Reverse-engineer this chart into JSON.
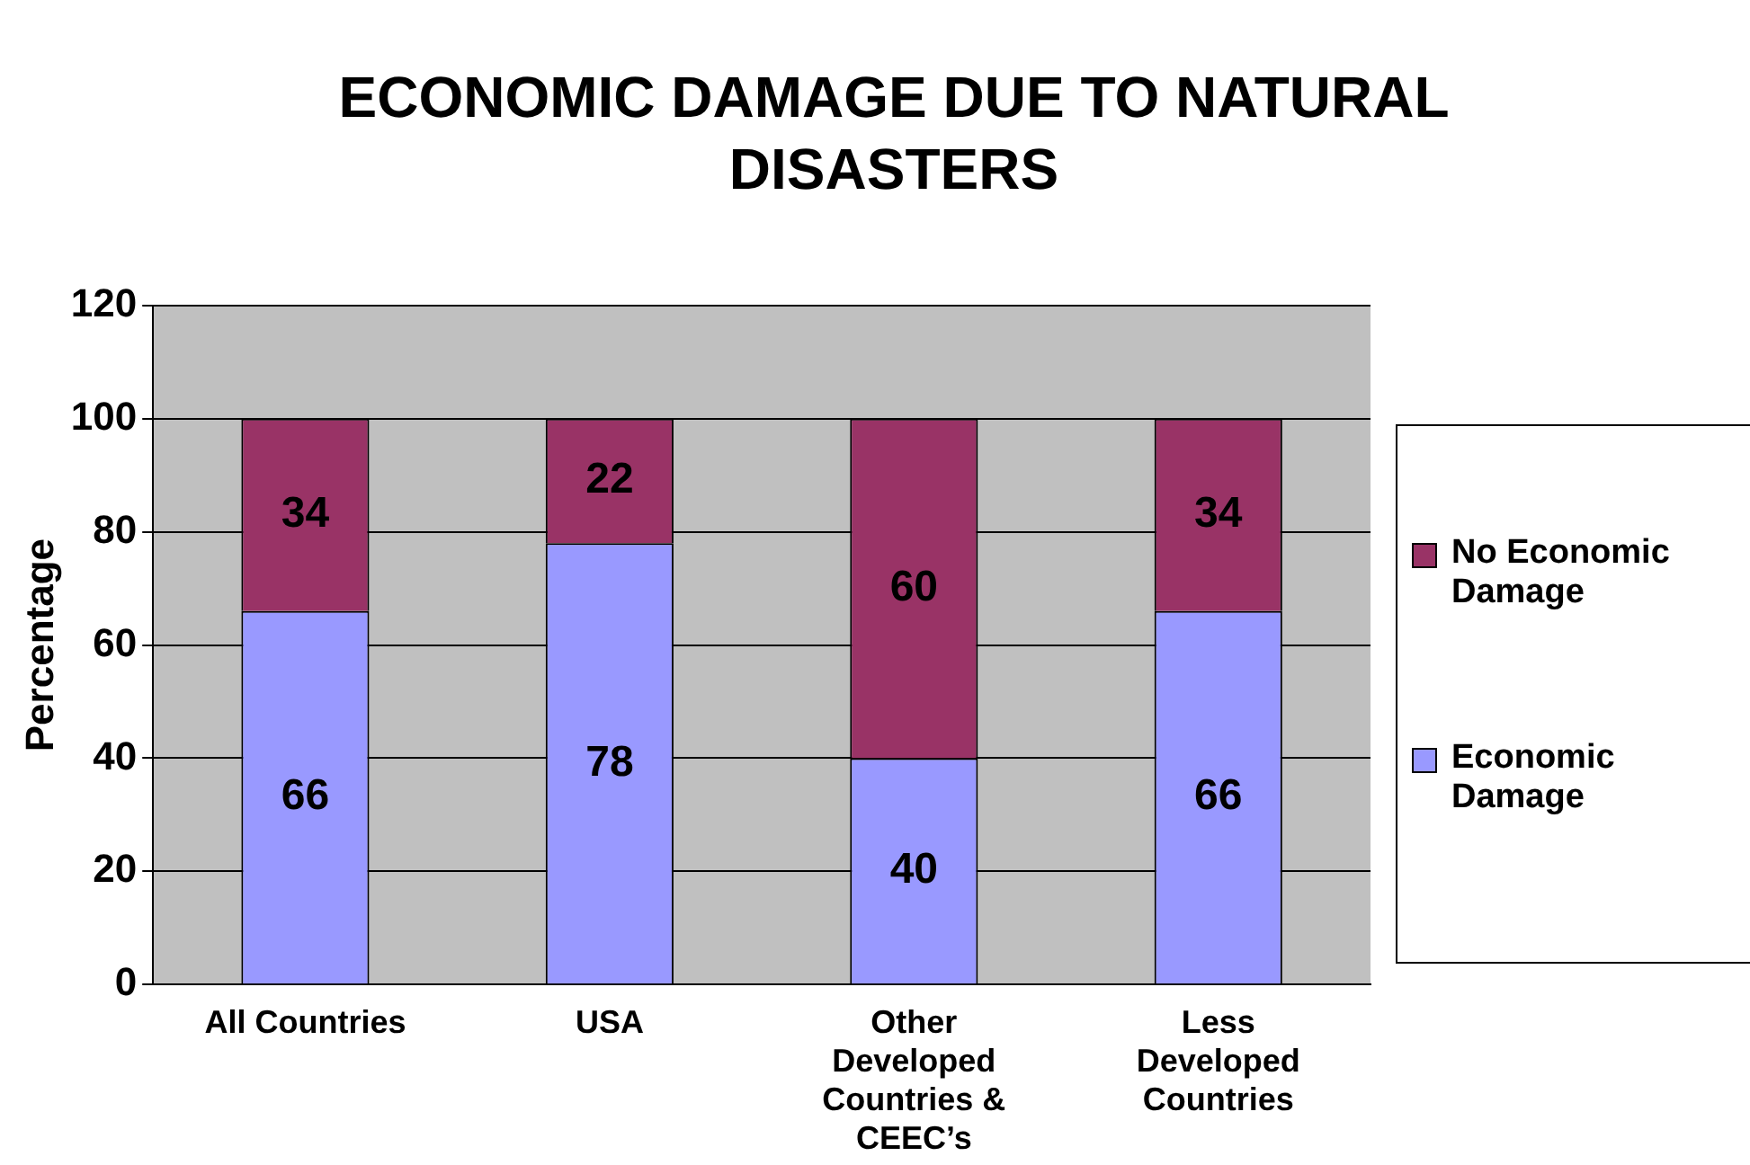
{
  "chart_data": {
    "type": "bar",
    "title": "ECONOMIC DAMAGE DUE TO NATURAL DISASTERS",
    "ylabel": "Percentage",
    "categories": [
      "All Countries",
      "USA",
      "Other Developed Countries & CEEC’s",
      "Less Developed Countries"
    ],
    "series": [
      {
        "name": "Economic Damage",
        "color": "#9999ff",
        "values": [
          66,
          78,
          40,
          66
        ]
      },
      {
        "name": "No Economic Damage",
        "color": "#993366",
        "values": [
          34,
          22,
          60,
          34
        ]
      }
    ],
    "stacked": true,
    "ylim": [
      0,
      120
    ],
    "yticks": [
      0,
      20,
      40,
      60,
      80,
      100,
      120
    ],
    "grid": "y",
    "legend": "right",
    "data_labels": true
  }
}
